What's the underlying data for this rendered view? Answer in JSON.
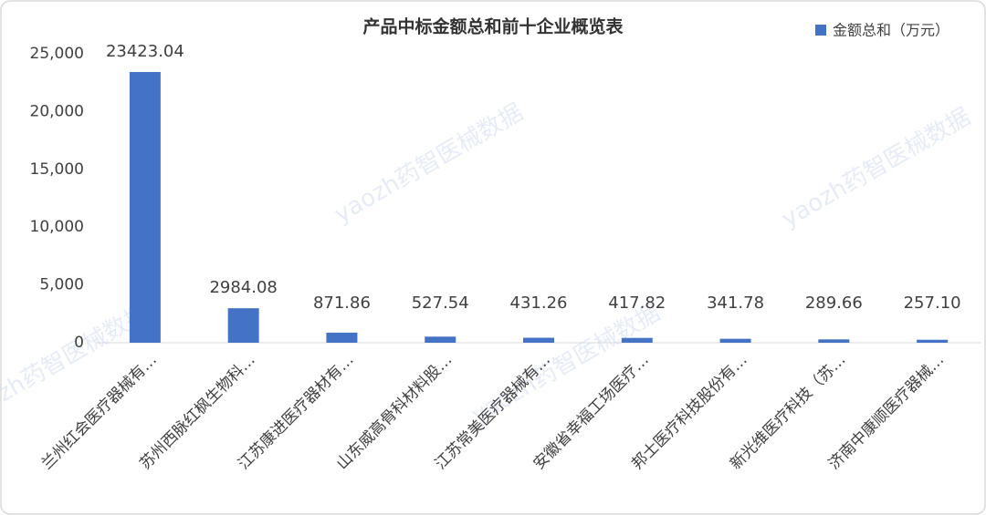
{
  "chart_data": {
    "type": "bar",
    "title": "产品中标金额总和前十企业概览表",
    "watermark": "yaozh药智医械数据",
    "categories": [
      "兰州红会医疗器械有…",
      "苏州西脉红枫生物科…",
      "江苏康进医疗器材有…",
      "山东威高骨科材料股…",
      "江苏常美医疗器械有…",
      "安徽省幸福工场医疗…",
      "邦士医疗科技股份有…",
      "新光维医疗科技（苏…",
      "济南中康顺医疗器械…"
    ],
    "series": [
      {
        "name": "金额总和（万元）",
        "color": "#4472c4",
        "values": [
          23423.04,
          2984.08,
          871.86,
          527.54,
          431.26,
          417.82,
          341.78,
          289.66,
          257.1
        ],
        "value_labels": [
          "23423.04",
          "2984.08",
          "871.86",
          "527.54",
          "431.26",
          "417.82",
          "341.78",
          "289.66",
          "257.10"
        ]
      }
    ],
    "ylim": [
      0,
      25000
    ],
    "yticks": [
      0,
      {
        "value": 5000,
        "label": "5,000"
      },
      {
        "value": 10000,
        "label": "10,000"
      },
      {
        "value": 15000,
        "label": "15,000"
      },
      {
        "value": 20000,
        "label": "20,000"
      },
      {
        "value": 25000,
        "label": "25,000"
      }
    ],
    "grid": false,
    "legend": "top-right"
  }
}
